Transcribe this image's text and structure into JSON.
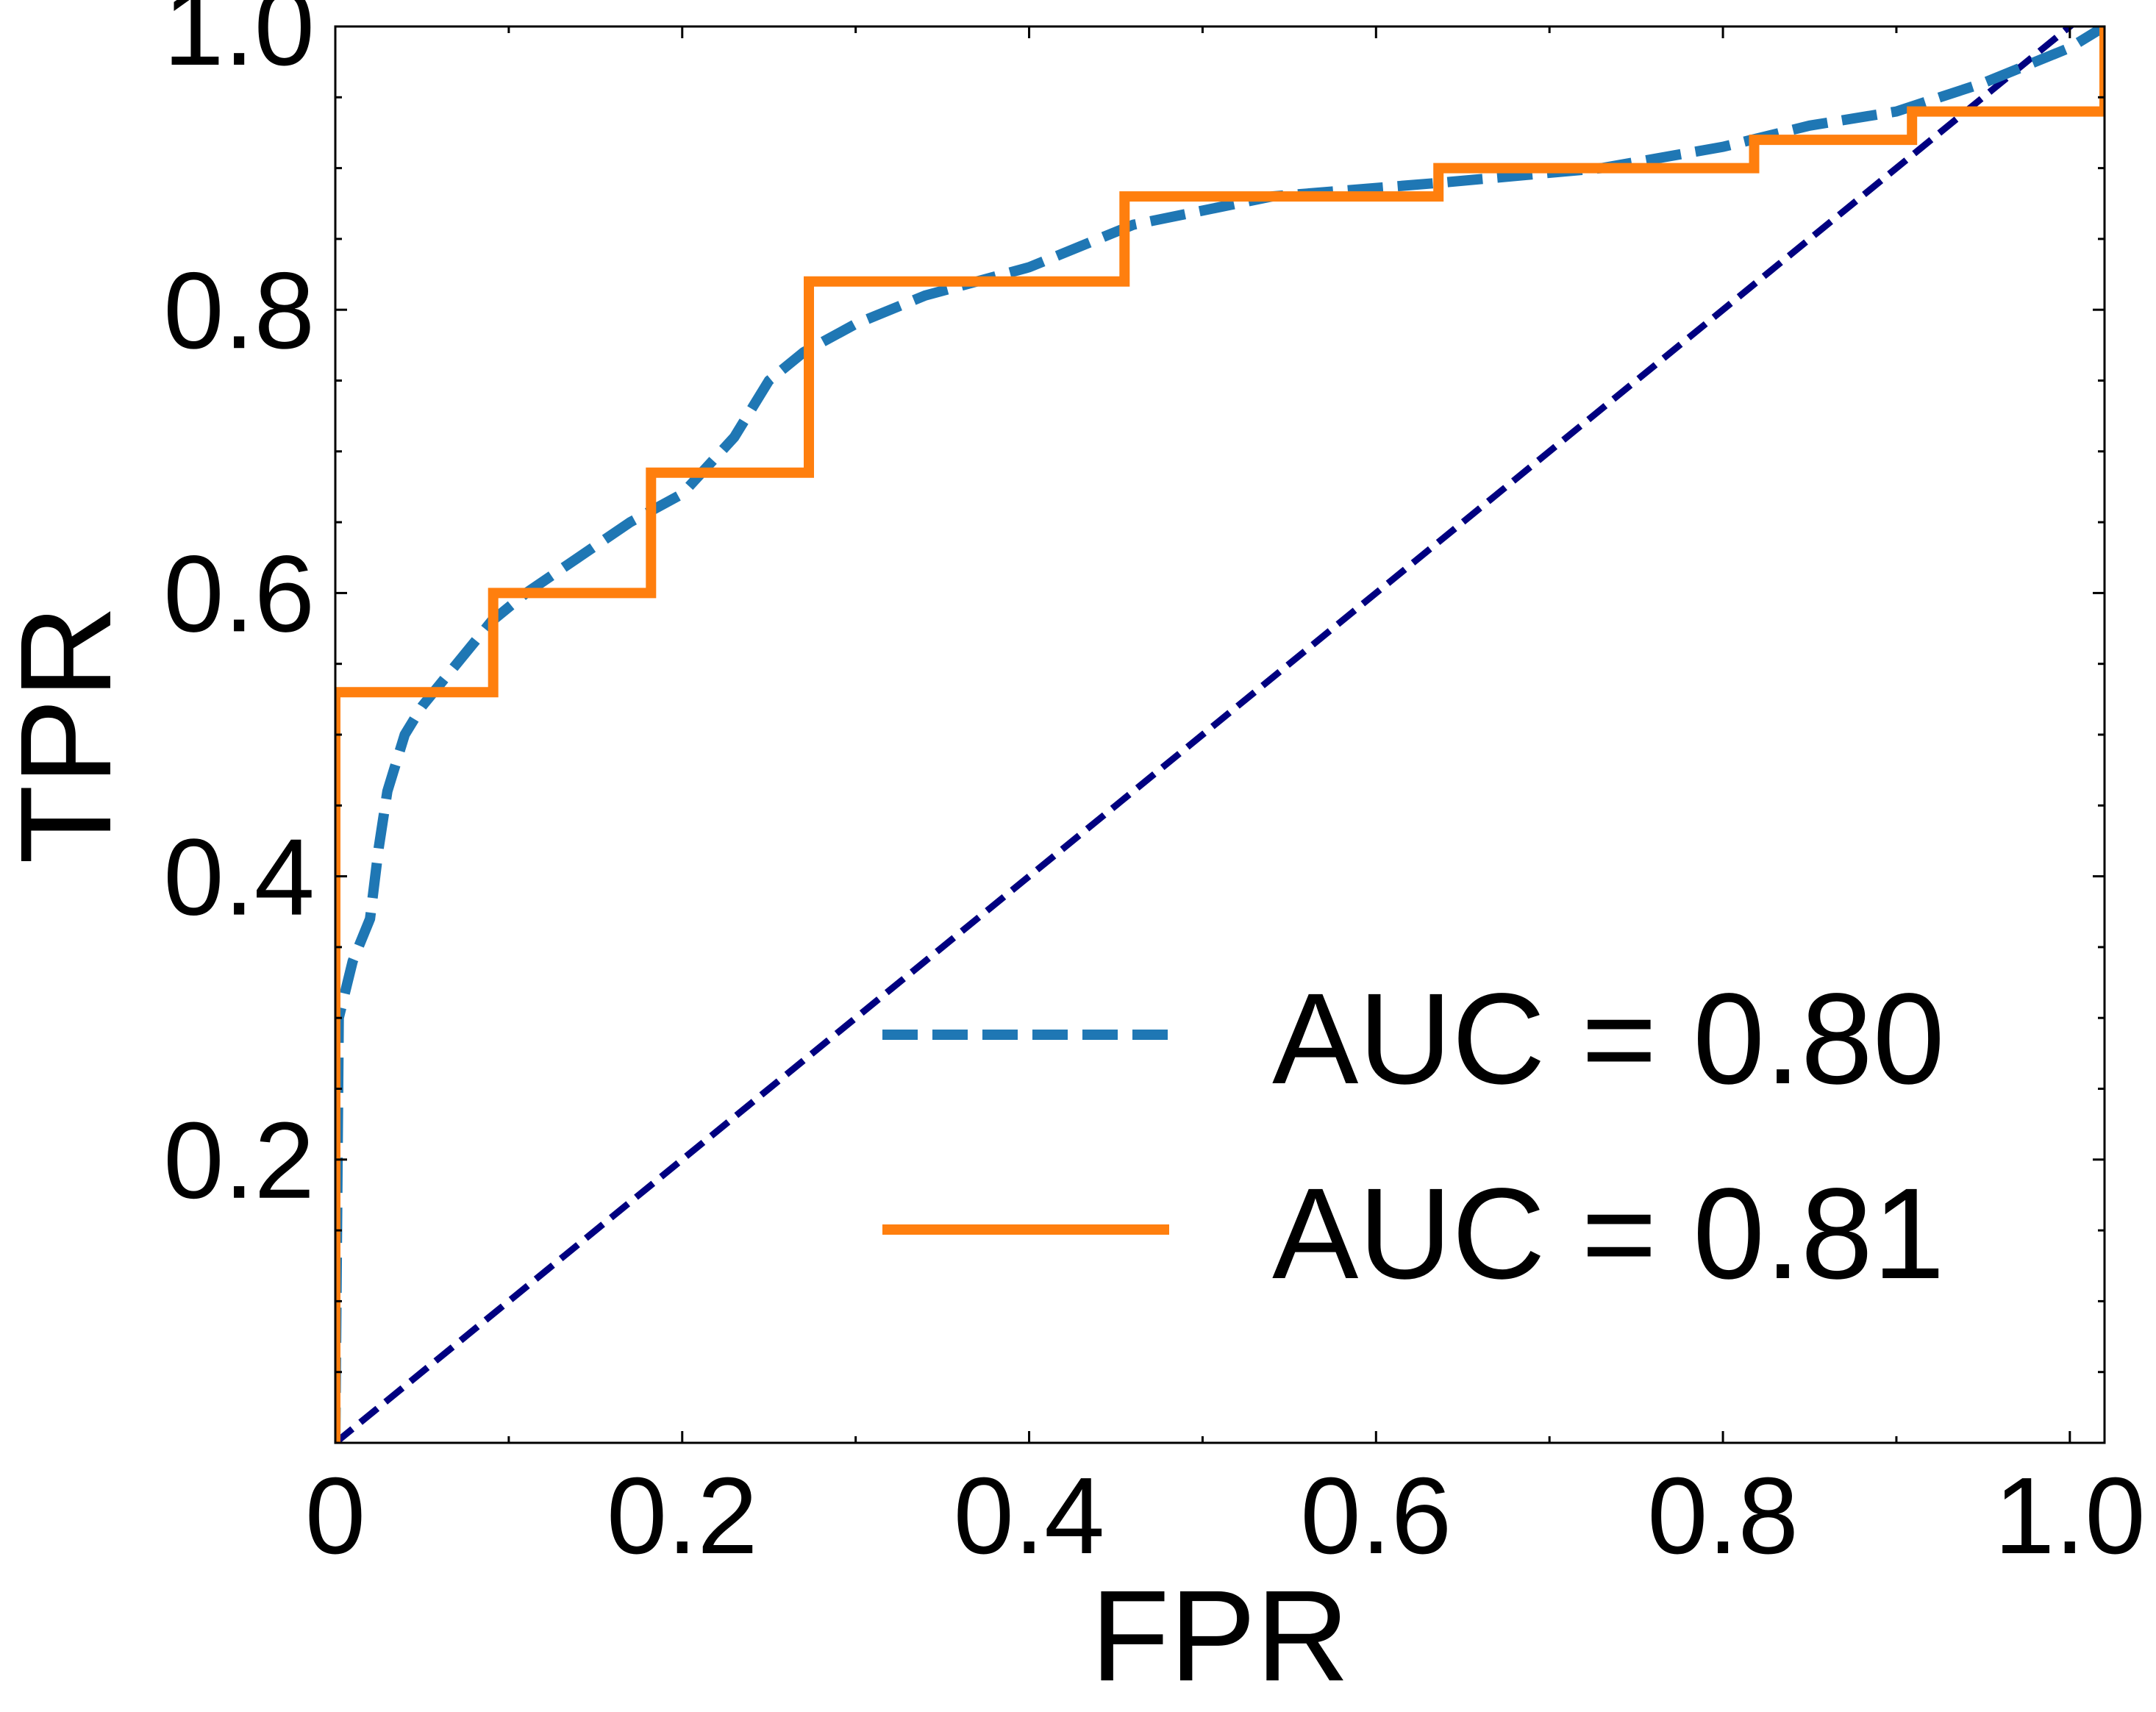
{
  "chart_data": {
    "type": "line",
    "title": "",
    "xlabel": "FPR",
    "ylabel": "TPR",
    "xlim": [
      0,
      1.02
    ],
    "ylim": [
      0,
      1.0
    ],
    "x_ticks": [
      {
        "value": 0,
        "label": "0"
      },
      {
        "value": 0.2,
        "label": "0.2"
      },
      {
        "value": 0.4,
        "label": "0.4"
      },
      {
        "value": 0.6,
        "label": "0.6"
      },
      {
        "value": 0.8,
        "label": "0.8"
      },
      {
        "value": 1.0,
        "label": "1.0"
      }
    ],
    "y_ticks": [
      {
        "value": 0.2,
        "label": "0.2"
      },
      {
        "value": 0.4,
        "label": "0.4"
      },
      {
        "value": 0.6,
        "label": "0.6"
      },
      {
        "value": 0.8,
        "label": "0.8"
      },
      {
        "value": 1.0,
        "label": "1.0"
      }
    ],
    "grid": false,
    "legend_position": "lower-right",
    "series": [
      {
        "name": "AUC = 0.80",
        "color": "#1f77b4",
        "style": "dashed",
        "x": [
          0,
          0.002,
          0.01,
          0.02,
          0.025,
          0.03,
          0.04,
          0.05,
          0.07,
          0.09,
          0.11,
          0.14,
          0.17,
          0.2,
          0.23,
          0.25,
          0.27,
          0.3,
          0.34,
          0.4,
          0.46,
          0.54,
          0.64,
          0.73,
          0.8,
          0.85,
          0.9,
          0.95,
          1.0,
          1.02
        ],
        "y": [
          0,
          0.3,
          0.34,
          0.37,
          0.42,
          0.46,
          0.5,
          0.52,
          0.55,
          0.58,
          0.6,
          0.625,
          0.65,
          0.67,
          0.71,
          0.75,
          0.77,
          0.79,
          0.81,
          0.83,
          0.86,
          0.88,
          0.89,
          0.9,
          0.915,
          0.93,
          0.94,
          0.96,
          0.985,
          1.0
        ]
      },
      {
        "name": "AUC = 0.81",
        "color": "#ff7f0e",
        "style": "solid",
        "step": true,
        "x": [
          0,
          0,
          0.091,
          0.091,
          0.182,
          0.182,
          0.273,
          0.273,
          0.455,
          0.455,
          0.636,
          0.636,
          0.818,
          0.818,
          0.909,
          0.909,
          1.02,
          1.02
        ],
        "y": [
          0,
          0.53,
          0.53,
          0.6,
          0.6,
          0.685,
          0.685,
          0.82,
          0.82,
          0.88,
          0.88,
          0.9,
          0.9,
          0.92,
          0.92,
          0.94,
          0.94,
          1.0
        ]
      },
      {
        "color": "#000080",
        "style": "dashed",
        "x": [
          0,
          1.02
        ],
        "y": [
          0,
          1.02
        ]
      }
    ]
  }
}
